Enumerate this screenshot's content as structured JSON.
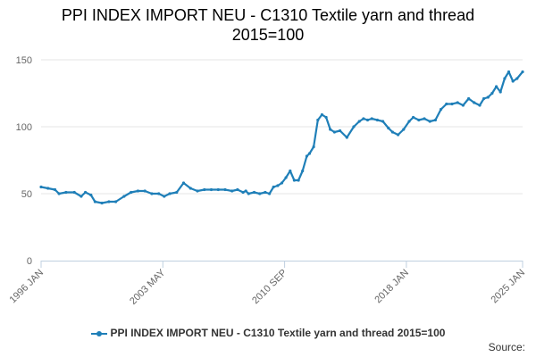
{
  "title_line1": "PPI INDEX IMPORT NEU - C1310 Textile yarn and thread",
  "title_line2": "2015=100",
  "legend_label": "PPI INDEX IMPORT NEU - C1310 Textile yarn and thread 2015=100",
  "source_label": "Source:",
  "colors": {
    "series": "#1f7fb8",
    "grid": "#e6e6e6",
    "axis": "#c0d0e0"
  },
  "chart_data": {
    "type": "line",
    "title": "PPI INDEX IMPORT NEU - C1310 Textile yarn and thread 2015=100",
    "xlabel": "",
    "ylabel": "",
    "ylim": [
      0,
      150
    ],
    "yticks": [
      "0",
      "50",
      "100",
      "150"
    ],
    "xticks": [
      "1996 JAN",
      "2003 MAY",
      "2010 SEP",
      "2018 JAN",
      "2025 JAN"
    ],
    "xlim": [
      "1996-01",
      "2025-01"
    ],
    "grid": true,
    "legend": "bottom",
    "series": [
      {
        "name": "PPI INDEX IMPORT NEU - C1310 Textile yarn and thread 2015=100",
        "x": [
          "1996-01",
          "1996-06",
          "1996-11",
          "1997-02",
          "1997-07",
          "1998-01",
          "1998-06",
          "1998-09",
          "1999-01",
          "1999-04",
          "1999-09",
          "2000-02",
          "2000-07",
          "2001-01",
          "2001-06",
          "2001-11",
          "2002-04",
          "2002-09",
          "2003-02",
          "2003-06",
          "2003-10",
          "2004-03",
          "2004-08",
          "2005-01",
          "2005-06",
          "2005-11",
          "2006-04",
          "2006-09",
          "2007-02",
          "2007-07",
          "2007-11",
          "2008-03",
          "2008-05",
          "2008-07",
          "2008-11",
          "2009-03",
          "2009-07",
          "2009-10",
          "2010-01",
          "2010-04",
          "2010-07",
          "2010-10",
          "2011-01",
          "2011-04",
          "2011-07",
          "2011-10",
          "2012-01",
          "2012-03",
          "2012-06",
          "2012-09",
          "2012-12",
          "2013-03",
          "2013-06",
          "2013-09",
          "2014-01",
          "2014-06",
          "2014-11",
          "2015-03",
          "2015-06",
          "2015-09",
          "2015-12",
          "2016-04",
          "2016-08",
          "2016-12",
          "2017-03",
          "2017-07",
          "2017-11",
          "2018-03",
          "2018-06",
          "2018-10",
          "2019-02",
          "2019-06",
          "2019-10",
          "2020-02",
          "2020-06",
          "2020-10",
          "2021-02",
          "2021-06",
          "2021-10",
          "2022-02",
          "2022-06",
          "2022-09",
          "2022-12",
          "2023-03",
          "2023-06",
          "2023-09",
          "2023-12",
          "2024-03",
          "2024-06",
          "2024-09",
          "2025-01"
        ],
        "values": [
          55,
          54,
          53,
          50,
          51,
          51,
          48,
          51,
          49,
          44,
          43,
          44,
          44,
          48,
          51,
          52,
          52,
          50,
          50,
          48,
          50,
          51,
          58,
          54,
          52,
          53,
          53,
          53,
          53,
          52,
          53,
          51,
          52,
          50,
          51,
          50,
          51,
          50,
          55,
          56,
          58,
          62,
          67,
          60,
          60,
          67,
          78,
          80,
          85,
          105,
          109,
          107,
          98,
          96,
          97,
          92,
          100,
          104,
          106,
          105,
          106,
          105,
          104,
          99,
          96,
          94,
          98,
          104,
          107,
          105,
          106,
          104,
          105,
          113,
          117,
          117,
          118,
          116,
          121,
          118,
          116,
          121,
          122,
          125,
          130,
          126,
          136,
          141,
          134,
          136,
          141
        ]
      }
    ]
  }
}
